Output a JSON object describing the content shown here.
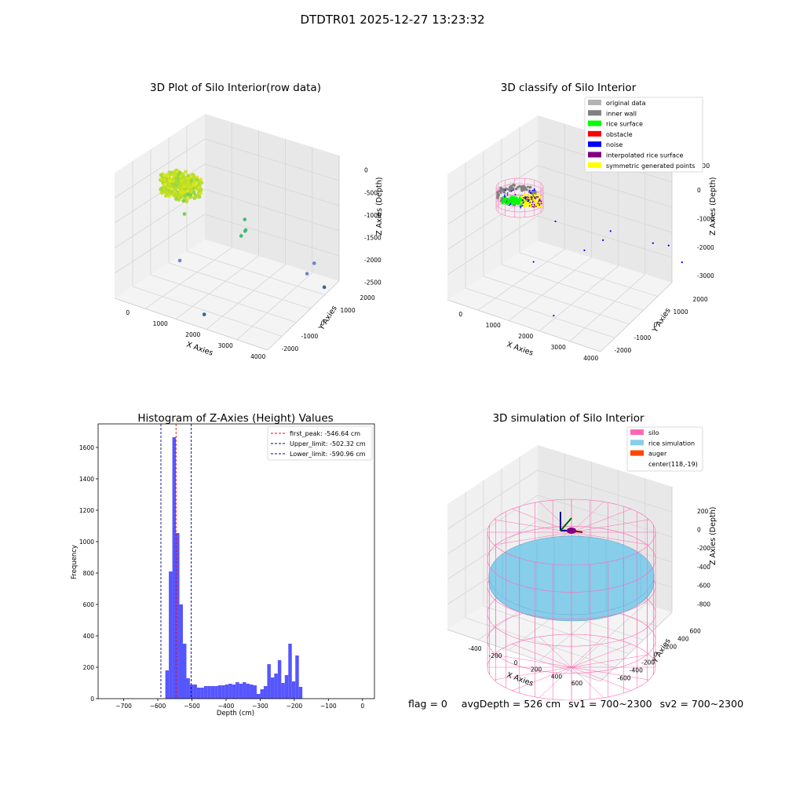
{
  "figure_title": "DTDTR01 2025-12-27 13:23:32",
  "status": {
    "flag": "flag = 0",
    "avg_depth": "avgDepth = 526 cm",
    "sv1": "sv1 = 700~2300",
    "sv2": "sv2 = 700~2300"
  },
  "colors": {
    "hist_bar": "#4d4dff",
    "first_peak": "#ff0000",
    "limit_line": "#00008b",
    "silo": "#ff69b4",
    "rice_simulation": "#87ceeb",
    "auger": "#ff4500",
    "original_data": "#b3b3b3",
    "inner_wall": "#808080",
    "rice_surface": "#00ff00",
    "obstacle": "#ff0000",
    "noise": "#0000ff",
    "interpolated_rice_surface": "#800080",
    "symmetric_generated_points": "#ffff00"
  },
  "chart_data": [
    {
      "type": "scatter",
      "title": "3D Plot of Silo Interior(row data)",
      "xlabel": "X Axies",
      "ylabel": "Y Axies",
      "zlabel": "Z Axies (Depth)",
      "xticks": [
        "0",
        "1000",
        "2000",
        "3000",
        "4000"
      ],
      "yticks": [
        "-2000",
        "-1000",
        "0",
        "1000",
        "2000"
      ],
      "zticks": [
        "0",
        "-500",
        "-1000",
        "-1500",
        "-2000",
        "-2500"
      ],
      "xlim": [
        -500,
        4200
      ],
      "ylim": [
        -2300,
        2300
      ],
      "zlim": [
        -2700,
        100
      ],
      "cluster": {
        "x_center": 150,
        "y_center": 0,
        "z_center": -500,
        "radius": 550,
        "depth_span": 350,
        "point_count": 420
      },
      "points": [
        {
          "x": 650,
          "y": -700,
          "z": -700
        },
        {
          "x": 750,
          "y": -500,
          "z": -600
        },
        {
          "x": 800,
          "y": -900,
          "z": -900
        },
        {
          "x": 600,
          "y": -400,
          "z": -650
        },
        {
          "x": 2050,
          "y": 100,
          "z": -1000
        },
        {
          "x": 2000,
          "y": 200,
          "z": -1300
        },
        {
          "x": 2050,
          "y": 150,
          "z": -1250
        },
        {
          "x": 2000,
          "y": 0,
          "z": -1350
        },
        {
          "x": 900,
          "y": -1300,
          "z": -1800
        },
        {
          "x": 3700,
          "y": 900,
          "z": -1800
        },
        {
          "x": 3600,
          "y": 700,
          "z": -2000
        },
        {
          "x": 3950,
          "y": 1000,
          "z": -2300
        },
        {
          "x": 1950,
          "y": -1800,
          "z": -2600
        }
      ]
    },
    {
      "type": "scatter",
      "title": "3D classify of Silo Interior",
      "xlabel": "X Axies",
      "ylabel": "Y Axies",
      "zlabel": "Z Axies (Depth)",
      "xticks": [
        "0",
        "1000",
        "2000",
        "3000",
        "4000"
      ],
      "yticks": [
        "-2000",
        "-1000",
        "0",
        "1000",
        "2000"
      ],
      "zticks": [
        "-3000",
        "-2000",
        "-1000",
        "0"
      ],
      "zticks_extra": "00",
      "xlim": [
        -500,
        4200
      ],
      "ylim": [
        -2300,
        2300
      ],
      "zlim": [
        -3600,
        800
      ],
      "legend": [
        "original data",
        "inner wall",
        "rice surface",
        "obstacle",
        "noise",
        "interpolated rice surface",
        "symmetric generated points"
      ],
      "legend_placement": "upper-right",
      "noise_points": [
        {
          "x": 1550,
          "y": -200,
          "z": -1000
        },
        {
          "x": 2700,
          "y": 700,
          "z": -1300
        },
        {
          "x": 2500,
          "y": -300,
          "z": -1600
        },
        {
          "x": 2650,
          "y": 400,
          "z": -1500
        },
        {
          "x": 3400,
          "y": 1700,
          "z": -1900
        },
        {
          "x": 3700,
          "y": 2000,
          "z": -2000
        },
        {
          "x": 4050,
          "y": 2100,
          "z": -2500
        },
        {
          "x": 1300,
          "y": -900,
          "z": -2200
        },
        {
          "x": 2400,
          "y": -1700,
          "z": -3300
        }
      ]
    },
    {
      "type": "bar",
      "title": "Histogram of Z-Axies (Height) Values",
      "xlabel": "Depth (cm)",
      "ylabel": "Frequency",
      "xlim": [
        -775,
        35
      ],
      "ylim": [
        0,
        1750
      ],
      "xticks": [
        -700,
        -600,
        -500,
        -400,
        -300,
        -200,
        -100,
        0
      ],
      "yticks": [
        0,
        200,
        400,
        600,
        800,
        1000,
        1200,
        1400,
        1600
      ],
      "bin_width": 10.3,
      "bin_start": -578,
      "values": [
        180,
        810,
        1665,
        1055,
        600,
        350,
        130,
        90,
        90,
        70,
        70,
        80,
        80,
        80,
        80,
        85,
        85,
        90,
        95,
        90,
        105,
        95,
        105,
        95,
        90,
        85,
        30,
        60,
        80,
        220,
        135,
        160,
        245,
        100,
        150,
        350,
        110,
        275,
        75
      ],
      "lines": [
        {
          "label": "first_peak: -546.64 cm",
          "x": -546.64,
          "style": "first_peak"
        },
        {
          "label": "Upper_limit: -502.32 cm",
          "x": -502.32,
          "style": "limit"
        },
        {
          "label": "Lower_limit: -590.96 cm",
          "x": -590.96,
          "style": "limit"
        }
      ],
      "legend_placement": "upper-right"
    },
    {
      "type": "scatter",
      "title": "3D simulation of Silo Interior",
      "xlabel": "X Axies",
      "ylabel": "Y Axies",
      "zlabel": "Z Axies (Depth)",
      "xticks": [
        "-400",
        "-200",
        "0",
        "200",
        "400",
        "600"
      ],
      "yticks": [
        "-600",
        "-400",
        "-200",
        "0",
        "200",
        "400",
        "600"
      ],
      "zticks": [
        "200",
        "0",
        "-200",
        "-400",
        "-600",
        "-800"
      ],
      "xlim": [
        -700,
        800
      ],
      "ylim": [
        -750,
        750
      ],
      "zlim": [
        -1000,
        350
      ],
      "silo": {
        "radius": 600,
        "z_top": 0,
        "z_bottom": -950
      },
      "rice": {
        "radius": 580,
        "z_level": -450
      },
      "auger_center": {
        "x": 118,
        "y": -19
      },
      "legend": [
        "silo",
        "rice simulation",
        "auger",
        "center(118,-19)"
      ],
      "legend_placement": "upper-right"
    }
  ]
}
